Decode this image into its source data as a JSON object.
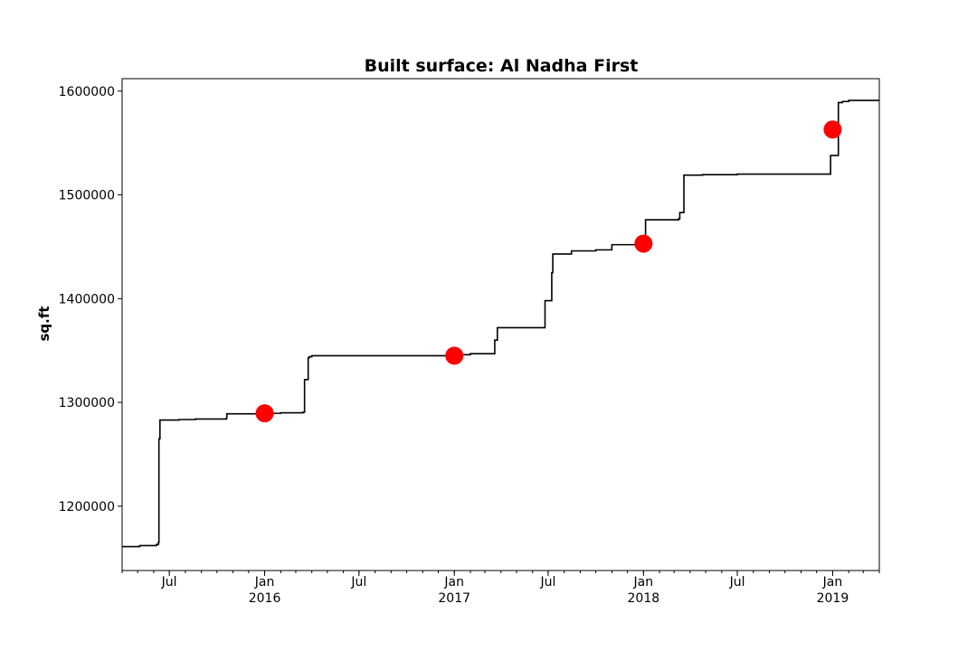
{
  "chart_data": {
    "type": "line",
    "title": "Built surface: Al Nadha First",
    "xlabel": "",
    "ylabel": "sq.ft",
    "xlim": [
      "2015-04-01",
      "2019-04-01"
    ],
    "ylim": [
      1138000,
      1612000
    ],
    "grid": false,
    "legend": "none",
    "line_color": "#000000",
    "marker_color": "#ff0000",
    "y_ticks": [
      1200000,
      1300000,
      1400000,
      1500000,
      1600000
    ],
    "y_tick_labels": [
      "1200000",
      "1300000",
      "1400000",
      "1500000",
      "1600000"
    ],
    "x_major_ticks": [
      {
        "date": "2015-07-01",
        "label": "Jul",
        "year": ""
      },
      {
        "date": "2016-01-01",
        "label": "Jan",
        "year": "2016"
      },
      {
        "date": "2016-07-01",
        "label": "Jul",
        "year": ""
      },
      {
        "date": "2017-01-01",
        "label": "Jan",
        "year": "2017"
      },
      {
        "date": "2017-07-01",
        "label": "Jul",
        "year": ""
      },
      {
        "date": "2018-01-01",
        "label": "Jan",
        "year": "2018"
      },
      {
        "date": "2018-07-01",
        "label": "Jul",
        "year": ""
      },
      {
        "date": "2019-01-01",
        "label": "Jan",
        "year": "2019"
      }
    ],
    "series": [
      {
        "kind": "step-line",
        "x": [
          "2015-04-01",
          "2015-04-20",
          "2015-05-05",
          "2015-06-06",
          "2015-06-10",
          "2015-06-11",
          "2015-06-13",
          "2015-06-20",
          "2015-07-20",
          "2015-08-20",
          "2015-09-20",
          "2015-10-19",
          "2015-10-20",
          "2015-12-01",
          "2016-01-01",
          "2016-02-01",
          "2016-03-15",
          "2016-03-18",
          "2016-03-25",
          "2016-03-27",
          "2016-04-01",
          "2016-06-01",
          "2016-09-01",
          "2016-12-01",
          "2017-01-01",
          "2017-01-10",
          "2017-02-01",
          "2017-03-12",
          "2017-03-20",
          "2017-03-25",
          "2017-06-25",
          "2017-07-08",
          "2017-07-10",
          "2017-07-15",
          "2017-08-15",
          "2017-09-01",
          "2017-10-01",
          "2017-10-10",
          "2017-11-01",
          "2018-01-05",
          "2018-03-10",
          "2018-03-12",
          "2018-03-20",
          "2018-04-25",
          "2018-07-01",
          "2018-12-01",
          "2018-12-10",
          "2018-12-28",
          "2019-01-12",
          "2019-01-20",
          "2019-02-01",
          "2019-04-01"
        ],
        "y": [
          1161000,
          1161000,
          1162000,
          1163000,
          1165000,
          1265000,
          1283000,
          1283000,
          1283500,
          1284000,
          1284000,
          1284500,
          1289000,
          1289000,
          1289500,
          1290000,
          1290500,
          1322000,
          1343000,
          1344000,
          1345000,
          1345000,
          1345000,
          1345000,
          1345500,
          1346000,
          1347000,
          1347000,
          1360000,
          1372000,
          1398000,
          1425000,
          1443000,
          1443000,
          1446000,
          1446000,
          1447000,
          1447000,
          1452000,
          1476000,
          1477000,
          1483000,
          1519000,
          1519500,
          1520000,
          1520000,
          1520000,
          1538000,
          1589000,
          1590000,
          1591000,
          1591000
        ]
      },
      {
        "kind": "markers",
        "x": [
          "2016-01-01",
          "2017-01-01",
          "2018-01-01",
          "2019-01-01"
        ],
        "y": [
          1289500,
          1345000,
          1453000,
          1563000
        ]
      }
    ]
  }
}
